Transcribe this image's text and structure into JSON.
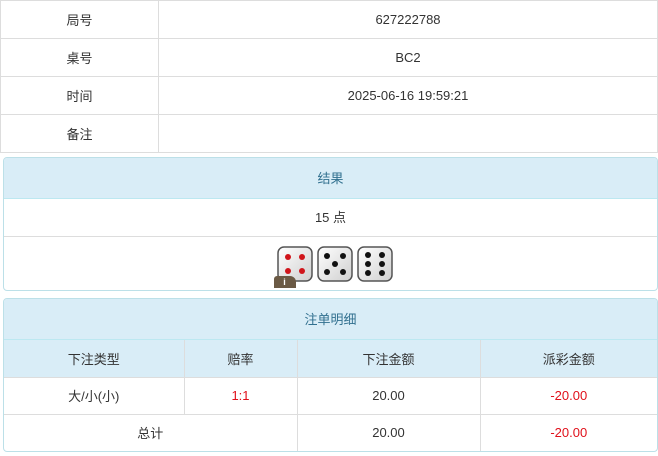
{
  "info": {
    "rows": [
      {
        "label": "局号",
        "value": "627222788"
      },
      {
        "label": "桌号",
        "value": "BC2"
      },
      {
        "label": "时间",
        "value": "2025-06-16 19:59:21"
      },
      {
        "label": "备注",
        "value": ""
      }
    ]
  },
  "result": {
    "title": "结果",
    "points": "15 点",
    "dice": [
      4,
      5,
      6
    ],
    "badge": "i",
    "pip_colors": {
      "four": "#d0141a",
      "other": "#111111"
    }
  },
  "bets": {
    "title": "注单明细",
    "headers": [
      "下注类型",
      "赔率",
      "下注金额",
      "派彩金额"
    ],
    "rows": [
      {
        "type": "大/小(小)",
        "odds": "1:1",
        "amount": "20.00",
        "payout": "-20.00"
      }
    ],
    "total": {
      "label": "总计",
      "amount": "20.00",
      "payout": "-20.00"
    },
    "accent_red": "#e0101a",
    "header_bg": "#d9edf7"
  }
}
